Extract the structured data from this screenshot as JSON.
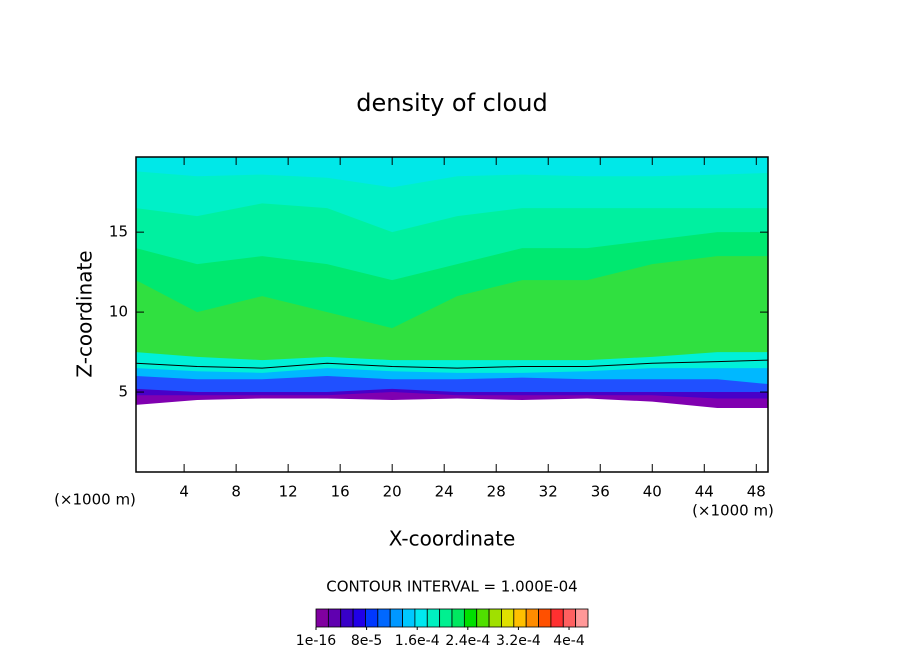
{
  "chart_data": {
    "type": "contour",
    "title": "density of cloud",
    "xlabel": "X-coordinate",
    "ylabel": "Z-coordinate",
    "x_unit": "(×1000 m)",
    "xlim": [
      0.3,
      48.9
    ],
    "ylim": [
      0,
      19.7
    ],
    "xticks": [
      4,
      8,
      12,
      16,
      20,
      24,
      28,
      32,
      36,
      40,
      44,
      48
    ],
    "yticks": [
      5,
      10,
      15
    ],
    "x": [
      0.3,
      5,
      10,
      15,
      20,
      25,
      30,
      35,
      40,
      45,
      48.9
    ],
    "bands": [
      {
        "color": "#00e8e8",
        "top": [
          19.7,
          19.7,
          19.7,
          19.7,
          19.7,
          19.7,
          19.7,
          19.7,
          19.7,
          19.7,
          19.7
        ]
      },
      {
        "color": "#00f0c8",
        "top": [
          18.8,
          18.5,
          18.6,
          18.4,
          17.8,
          18.5,
          18.6,
          18.5,
          18.5,
          18.6,
          18.7
        ]
      },
      {
        "color": "#00f0a0",
        "top": [
          16.5,
          16,
          16.8,
          16.5,
          15,
          16,
          16.5,
          16.5,
          16.5,
          16.5,
          16.5
        ]
      },
      {
        "color": "#00e870",
        "top": [
          14,
          13,
          13.5,
          13,
          12,
          13,
          14,
          14,
          14.5,
          15,
          15
        ]
      },
      {
        "color": "#30e040",
        "top": [
          12,
          10,
          11,
          10,
          9,
          11,
          12,
          12,
          13,
          13.5,
          13.5
        ]
      },
      {
        "color": "#00f0d8",
        "top": [
          7.5,
          7.2,
          7,
          7.2,
          7,
          7,
          7,
          7,
          7.2,
          7.5,
          7.5
        ]
      },
      {
        "color": "#00b8ff",
        "top": [
          6.5,
          6.3,
          6.2,
          6.5,
          6.3,
          6.2,
          6.2,
          6.3,
          6.5,
          6.5,
          6.5
        ]
      },
      {
        "color": "#2050ff",
        "top": [
          6,
          5.8,
          5.8,
          6,
          5.8,
          5.8,
          5.9,
          5.8,
          5.8,
          5.8,
          5.5
        ]
      },
      {
        "color": "#4800c8",
        "top": [
          5.2,
          5,
          5,
          5,
          5.2,
          5,
          5,
          5,
          5,
          5,
          5
        ]
      },
      {
        "color": "#8000b0",
        "top": [
          4.8,
          4.8,
          4.8,
          4.8,
          5,
          4.8,
          4.8,
          4.8,
          4.8,
          4.6,
          4.6
        ]
      }
    ],
    "base": [
      4.2,
      4.5,
      4.6,
      4.6,
      4.5,
      4.6,
      4.5,
      4.6,
      4.4,
      4.0,
      4.0
    ],
    "contours": [
      [
        6.8,
        6.6,
        6.5,
        6.8,
        6.6,
        6.5,
        6.6,
        6.6,
        6.8,
        6.9,
        7
      ]
    ],
    "contour_note": "CONTOUR INTERVAL = 1.000E-04",
    "colorbar": {
      "lim": [
        0,
        0.00043
      ],
      "colors": [
        "#8000a0",
        "#6000b0",
        "#3800c8",
        "#2000e8",
        "#0038ff",
        "#0068ff",
        "#0098ff",
        "#00c8ff",
        "#00e8f0",
        "#00f0c0",
        "#00f090",
        "#00e860",
        "#00e000",
        "#50e000",
        "#a0e000",
        "#e0e000",
        "#ffc000",
        "#ff8c00",
        "#ff5000",
        "#ff3030",
        "#ff6060",
        "#ff9898"
      ],
      "ticks": [
        {
          "value": 1e-16,
          "label": "1e-16"
        },
        {
          "value": 8e-05,
          "label": "8e-5"
        },
        {
          "value": 0.00016,
          "label": "1.6e-4"
        },
        {
          "value": 0.00024,
          "label": "2.4e-4"
        },
        {
          "value": 0.00032,
          "label": "3.2e-4"
        },
        {
          "value": 0.0004,
          "label": "4e-4"
        }
      ]
    }
  }
}
